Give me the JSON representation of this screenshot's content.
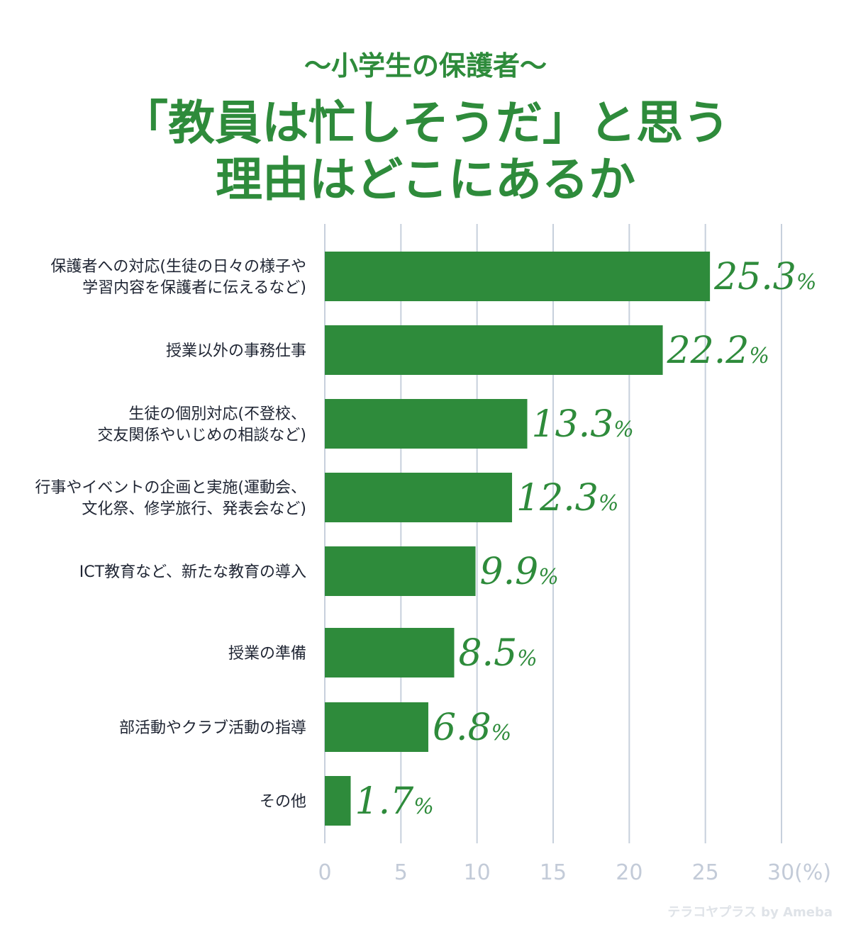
{
  "header": {
    "subtitle": "〜小学生の保護者〜",
    "title_line1": "「教員は忙しそうだ」と思う",
    "title_line2": "理由はどこにあるか"
  },
  "watermark": "テラコヤプラス by Ameba",
  "colors": {
    "bar": "#2e8b3b",
    "title": "#2e8b3b",
    "grid": "#c7d0dc",
    "tick_label": "#c3cbd8",
    "category_label": "#1f2533"
  },
  "chart_data": {
    "type": "bar",
    "orientation": "horizontal",
    "categories": [
      [
        "保護者への対応(生徒の日々の様子や",
        "学習内容を保護者に伝えるなど)"
      ],
      [
        "授業以外の事務仕事"
      ],
      [
        "生徒の個別対応(不登校、",
        "交友関係やいじめの相談など)"
      ],
      [
        "行事やイベントの企画と実施(運動会、",
        "文化祭、修学旅行、発表会など)"
      ],
      [
        "ICT教育など、新たな教育の導入"
      ],
      [
        "授業の準備"
      ],
      [
        "部活動やクラブ活動の指導"
      ],
      [
        "その他"
      ]
    ],
    "values": [
      25.3,
      22.2,
      13.3,
      12.3,
      9.9,
      8.5,
      6.8,
      1.7
    ],
    "value_labels": [
      "25.3",
      "22.2",
      "13.3",
      "12.3",
      "9.9",
      "8.5",
      "6.8",
      "1.7"
    ],
    "value_suffix": "%",
    "x_ticks": [
      "0",
      "5",
      "10",
      "15",
      "20",
      "25",
      "30(%)"
    ],
    "xlim": [
      0,
      30
    ],
    "grid": true,
    "legend": "none"
  }
}
